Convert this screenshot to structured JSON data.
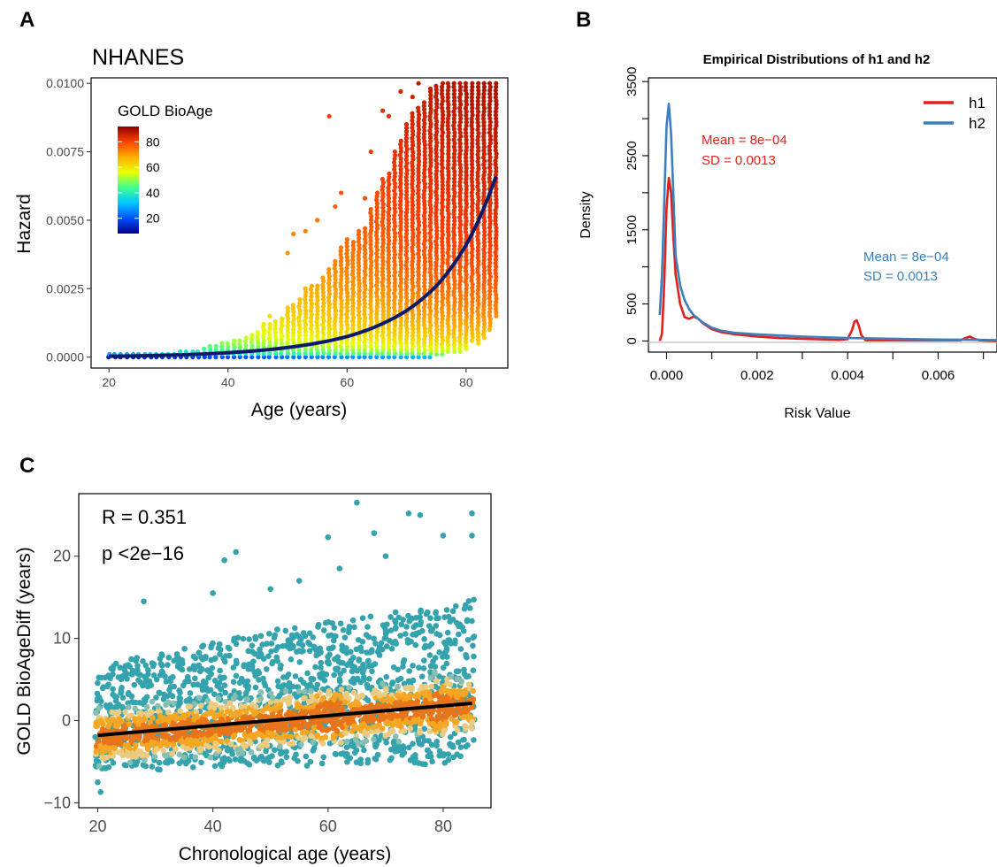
{
  "panel_labels": [
    "A",
    "B",
    "C"
  ],
  "chart_data": [
    {
      "panel": "A",
      "type": "scatter",
      "title": "NHANES",
      "xlabel": "Age (years)",
      "ylabel": "Hazard",
      "xlim": [
        17,
        87
      ],
      "ylim": [
        -0.0004,
        0.0102
      ],
      "xticks": [
        20,
        40,
        60,
        80
      ],
      "yticks": [
        0.0,
        0.0025,
        0.005,
        0.0075,
        0.01
      ],
      "ytick_labels": [
        "0.0000",
        "0.0025",
        "0.0050",
        "0.0075",
        "0.0100"
      ],
      "legend": {
        "title": "GOLD BioAge",
        "position": "top-left",
        "ticks": [
          20,
          40,
          60,
          80
        ],
        "color_range": [
          8,
          92
        ],
        "colors": [
          "#00008b",
          "#0050ff",
          "#00c8ff",
          "#40ff90",
          "#e8ff00",
          "#ffb000",
          "#ff4000",
          "#8b0000"
        ]
      },
      "fit_curve": {
        "color": "#0d1a6b",
        "form": "exponential",
        "x": [
          20,
          30,
          40,
          50,
          60,
          70,
          75,
          80,
          85
        ],
        "y": [
          3e-05,
          7e-05,
          0.00016,
          0.00035,
          0.00075,
          0.0017,
          0.0026,
          0.0041,
          0.0066
        ]
      },
      "point_columns": {
        "x": [
          20,
          21,
          22,
          23,
          24,
          25,
          26,
          27,
          28,
          29,
          30,
          31,
          32,
          33,
          34,
          35,
          36,
          37,
          38,
          39,
          40,
          41,
          42,
          43,
          44,
          45,
          46,
          47,
          48,
          49,
          50,
          51,
          52,
          53,
          54,
          55,
          56,
          57,
          58,
          59,
          60,
          61,
          62,
          63,
          64,
          65,
          66,
          67,
          68,
          69,
          70,
          71,
          72,
          73,
          74,
          75,
          76,
          77,
          78,
          79,
          80,
          81,
          82,
          83,
          84,
          85
        ],
        "ymin": [
          0.0,
          0.0,
          0.0,
          0.0,
          0.0,
          0.0,
          0.0,
          0.0,
          0.0,
          0.0,
          0.0,
          0.0,
          0.0,
          0.0,
          0.0,
          0.0,
          0.0,
          0.0,
          0.0,
          0.0,
          0.0,
          0.0,
          0.0,
          0.0,
          0.0,
          0.0,
          0.0,
          0.0,
          0.0,
          0.0,
          0.0,
          0.0,
          0.0,
          0.0,
          0.0,
          0.0,
          0.0,
          0.0,
          0.0,
          0.0,
          0.0,
          0.0,
          0.0,
          0.0,
          0.0,
          0.0,
          0.0,
          0.0,
          0.0,
          0.0,
          0.0,
          0.0,
          0.0,
          0.0,
          0.0,
          0.0001,
          0.0001,
          0.0002,
          0.0002,
          0.0002,
          0.0003,
          0.0006,
          0.0005,
          0.0007,
          0.001,
          0.0015
        ],
        "ymax": [
          0.0001,
          0.0001,
          0.0001,
          0.0001,
          0.0001,
          0.0001,
          0.0001,
          0.0001,
          0.0001,
          0.0001,
          0.0001,
          0.0001,
          0.0002,
          0.0002,
          0.0002,
          0.0002,
          0.0003,
          0.0004,
          0.0004,
          0.0005,
          0.0005,
          0.0006,
          0.0006,
          0.0007,
          0.0008,
          0.0009,
          0.0011,
          0.0012,
          0.0013,
          0.0014,
          0.0018,
          0.0019,
          0.0021,
          0.0025,
          0.0026,
          0.0026,
          0.0029,
          0.0032,
          0.0035,
          0.004,
          0.0043,
          0.0042,
          0.0046,
          0.0047,
          0.0054,
          0.006,
          0.0065,
          0.0067,
          0.0075,
          0.0079,
          0.0085,
          0.0089,
          0.0091,
          0.0093,
          0.0097,
          0.0099,
          0.01,
          0.01,
          0.01,
          0.01,
          0.01,
          0.01,
          0.01,
          0.01,
          0.01,
          0.01
        ]
      },
      "outliers": [
        {
          "x": 46,
          "y": 0.0012
        },
        {
          "x": 47,
          "y": 0.0015
        },
        {
          "x": 50,
          "y": 0.0038
        },
        {
          "x": 51,
          "y": 0.0045
        },
        {
          "x": 53,
          "y": 0.0046
        },
        {
          "x": 55,
          "y": 0.005
        },
        {
          "x": 57,
          "y": 0.0088
        },
        {
          "x": 58,
          "y": 0.0055
        },
        {
          "x": 59,
          "y": 0.006
        },
        {
          "x": 63,
          "y": 0.0058
        },
        {
          "x": 64,
          "y": 0.0075
        },
        {
          "x": 66,
          "y": 0.009
        },
        {
          "x": 67,
          "y": 0.0088
        },
        {
          "x": 69,
          "y": 0.0097
        },
        {
          "x": 71,
          "y": 0.0095
        },
        {
          "x": 72,
          "y": 0.01
        },
        {
          "x": 74,
          "y": 0.0098
        }
      ]
    },
    {
      "panel": "B",
      "type": "line",
      "title": "Empirical Distributions of h1 and h2",
      "xlabel": "Risk Value",
      "ylabel": "Density",
      "xlim": [
        -0.0004,
        0.0073
      ],
      "ylim": [
        -150,
        3550
      ],
      "xticks": [
        0.0,
        0.002,
        0.004,
        0.006
      ],
      "xtick_labels": [
        "0.000",
        "0.002",
        "0.004",
        "0.006"
      ],
      "yticks": [
        0,
        500,
        1500,
        2500,
        3500
      ],
      "ytick_labels": [
        "0",
        "500",
        "1500",
        "2500",
        "3500"
      ],
      "legend": "top-right",
      "series": [
        {
          "name": "h1",
          "color": "#e0201b",
          "x": [
            -0.00015,
            -0.0001,
            -5e-05,
            0.0,
            5e-05,
            0.0001,
            0.00015,
            0.0002,
            0.0003,
            0.0004,
            0.0005,
            0.0006,
            0.0007,
            0.0008,
            0.001,
            0.0012,
            0.0015,
            0.002,
            0.0025,
            0.003,
            0.0035,
            0.0038,
            0.004,
            0.0041,
            0.00415,
            0.0042,
            0.00425,
            0.0043,
            0.0044,
            0.0046,
            0.005,
            0.0055,
            0.006,
            0.0065,
            0.0066,
            0.0067,
            0.0068,
            0.0069,
            0.007,
            0.0073
          ],
          "y": [
            0,
            100,
            800,
            1800,
            2200,
            2000,
            1400,
            900,
            500,
            320,
            300,
            330,
            300,
            240,
            160,
            120,
            90,
            60,
            40,
            30,
            20,
            15,
            25,
            150,
            260,
            280,
            200,
            80,
            10,
            10,
            10,
            10,
            10,
            10,
            40,
            60,
            30,
            10,
            5,
            0
          ]
        },
        {
          "name": "h2",
          "color": "#3c7fbd",
          "x": [
            -0.00015,
            -0.0001,
            -5e-05,
            0.0,
            5e-05,
            0.0001,
            0.00015,
            0.0002,
            0.0003,
            0.0004,
            0.0005,
            0.0006,
            0.0008,
            0.001,
            0.0012,
            0.0015,
            0.002,
            0.0025,
            0.003,
            0.0035,
            0.004,
            0.005,
            0.006,
            0.007,
            0.0073
          ],
          "y": [
            350,
            900,
            1900,
            2900,
            3200,
            2800,
            2000,
            1150,
            750,
            550,
            430,
            350,
            250,
            180,
            140,
            110,
            90,
            75,
            60,
            50,
            40,
            30,
            20,
            15,
            12
          ]
        }
      ],
      "annotations": [
        {
          "text_lines": [
            "Mean = 8e−04",
            "SD = 0.0013"
          ],
          "series": "h1",
          "color": "#e0201b"
        },
        {
          "text_lines": [
            "Mean = 8e−04",
            "SD = 0.0013"
          ],
          "series": "h2",
          "color": "#3c7fbd"
        }
      ]
    },
    {
      "panel": "C",
      "type": "scatter",
      "xlabel": "Chronological age (years)",
      "ylabel": "GOLD BioAgeDiff (years)",
      "xlim": [
        16.7,
        88.3
      ],
      "ylim": [
        -10.6,
        27.6
      ],
      "xticks": [
        20,
        40,
        60,
        80
      ],
      "yticks": [
        -10,
        0,
        10,
        20
      ],
      "ytick_labels": [
        "−10",
        "0",
        "10",
        "20"
      ],
      "annotations": [
        "R = 0.351",
        "p <2e−16"
      ],
      "density_colors": [
        "#35a3ad",
        "#86bfb2",
        "#eacb7f",
        "#f5a623",
        "#e8751a"
      ],
      "regression_line": {
        "color": "#000000",
        "x": [
          20,
          85
        ],
        "y": [
          -1.8,
          2.1
        ]
      },
      "point_band": {
        "x": [
          20,
          30,
          40,
          50,
          60,
          70,
          80,
          85
        ],
        "low": [
          -6.0,
          -6.0,
          -5.8,
          -5.5,
          -5.5,
          -5.0,
          -5.5,
          -4.0
        ],
        "high": [
          7.0,
          8.0,
          9.5,
          11.0,
          12.0,
          13.0,
          14.0,
          15.0
        ]
      },
      "outliers": [
        {
          "x": 28,
          "y": 14.5
        },
        {
          "x": 42,
          "y": 19.5
        },
        {
          "x": 44,
          "y": 20.5
        },
        {
          "x": 20,
          "y": -7.5
        },
        {
          "x": 20.5,
          "y": -8.7
        },
        {
          "x": 40,
          "y": 15.5
        },
        {
          "x": 55,
          "y": 17.0
        },
        {
          "x": 60,
          "y": 22.3
        },
        {
          "x": 65,
          "y": 26.5
        },
        {
          "x": 68,
          "y": 22.8
        },
        {
          "x": 74,
          "y": 25.2
        },
        {
          "x": 76,
          "y": 25.0
        },
        {
          "x": 80,
          "y": 22.5
        },
        {
          "x": 85,
          "y": 25.2
        },
        {
          "x": 85,
          "y": 22.5
        },
        {
          "x": 70,
          "y": 20.0
        },
        {
          "x": 62,
          "y": 18.5
        },
        {
          "x": 50,
          "y": 16.0
        }
      ]
    }
  ]
}
